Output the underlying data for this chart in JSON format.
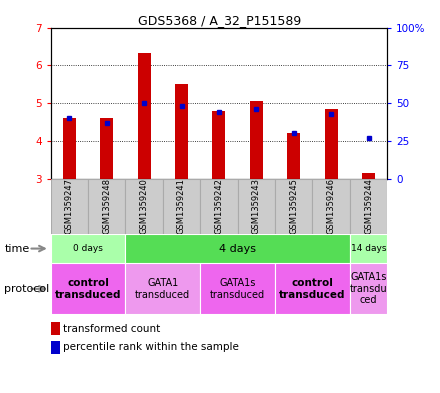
{
  "title": "GDS5368 / A_32_P151589",
  "samples": [
    "GSM1359247",
    "GSM1359248",
    "GSM1359240",
    "GSM1359241",
    "GSM1359242",
    "GSM1359243",
    "GSM1359245",
    "GSM1359246",
    "GSM1359244"
  ],
  "red_values": [
    4.62,
    4.6,
    6.32,
    5.5,
    4.78,
    5.07,
    4.2,
    4.85,
    3.15
  ],
  "blue_values_pct": [
    40,
    37,
    50,
    48,
    44,
    46,
    30,
    43,
    27
  ],
  "ylim_left": [
    3,
    7
  ],
  "ylim_right": [
    0,
    100
  ],
  "y_left_ticks": [
    3,
    4,
    5,
    6,
    7
  ],
  "y_right_ticks": [
    0,
    25,
    50,
    75,
    100
  ],
  "bar_color": "#cc0000",
  "dot_color": "#0000cc",
  "bar_bottom": 3.0,
  "bar_width": 0.35,
  "time_groups": [
    {
      "label": "0 days",
      "start": 0,
      "end": 2,
      "color": "#aaffaa"
    },
    {
      "label": "4 days",
      "start": 2,
      "end": 8,
      "color": "#55dd55"
    },
    {
      "label": "14 days",
      "start": 8,
      "end": 9,
      "color": "#aaffaa"
    }
  ],
  "protocol_groups": [
    {
      "label": "control\ntransduced",
      "start": 0,
      "end": 2,
      "color": "#ee66ee",
      "bold": true
    },
    {
      "label": "GATA1\ntransduced",
      "start": 2,
      "end": 4,
      "color": "#ee99ee",
      "bold": false
    },
    {
      "label": "GATA1s\ntransduced",
      "start": 4,
      "end": 6,
      "color": "#ee66ee",
      "bold": false
    },
    {
      "label": "control\ntransduced",
      "start": 6,
      "end": 8,
      "color": "#ee66ee",
      "bold": true
    },
    {
      "label": "GATA1s\ntransdu\nced",
      "start": 8,
      "end": 9,
      "color": "#ee99ee",
      "bold": false
    }
  ],
  "sample_bg_color": "#cccccc",
  "sample_border_color": "#aaaaaa",
  "legend_red_label": "transformed count",
  "legend_blue_label": "percentile rank within the sample",
  "time_label": "time",
  "protocol_label": "protocol",
  "fig_width": 4.4,
  "fig_height": 3.93,
  "fig_dpi": 100
}
